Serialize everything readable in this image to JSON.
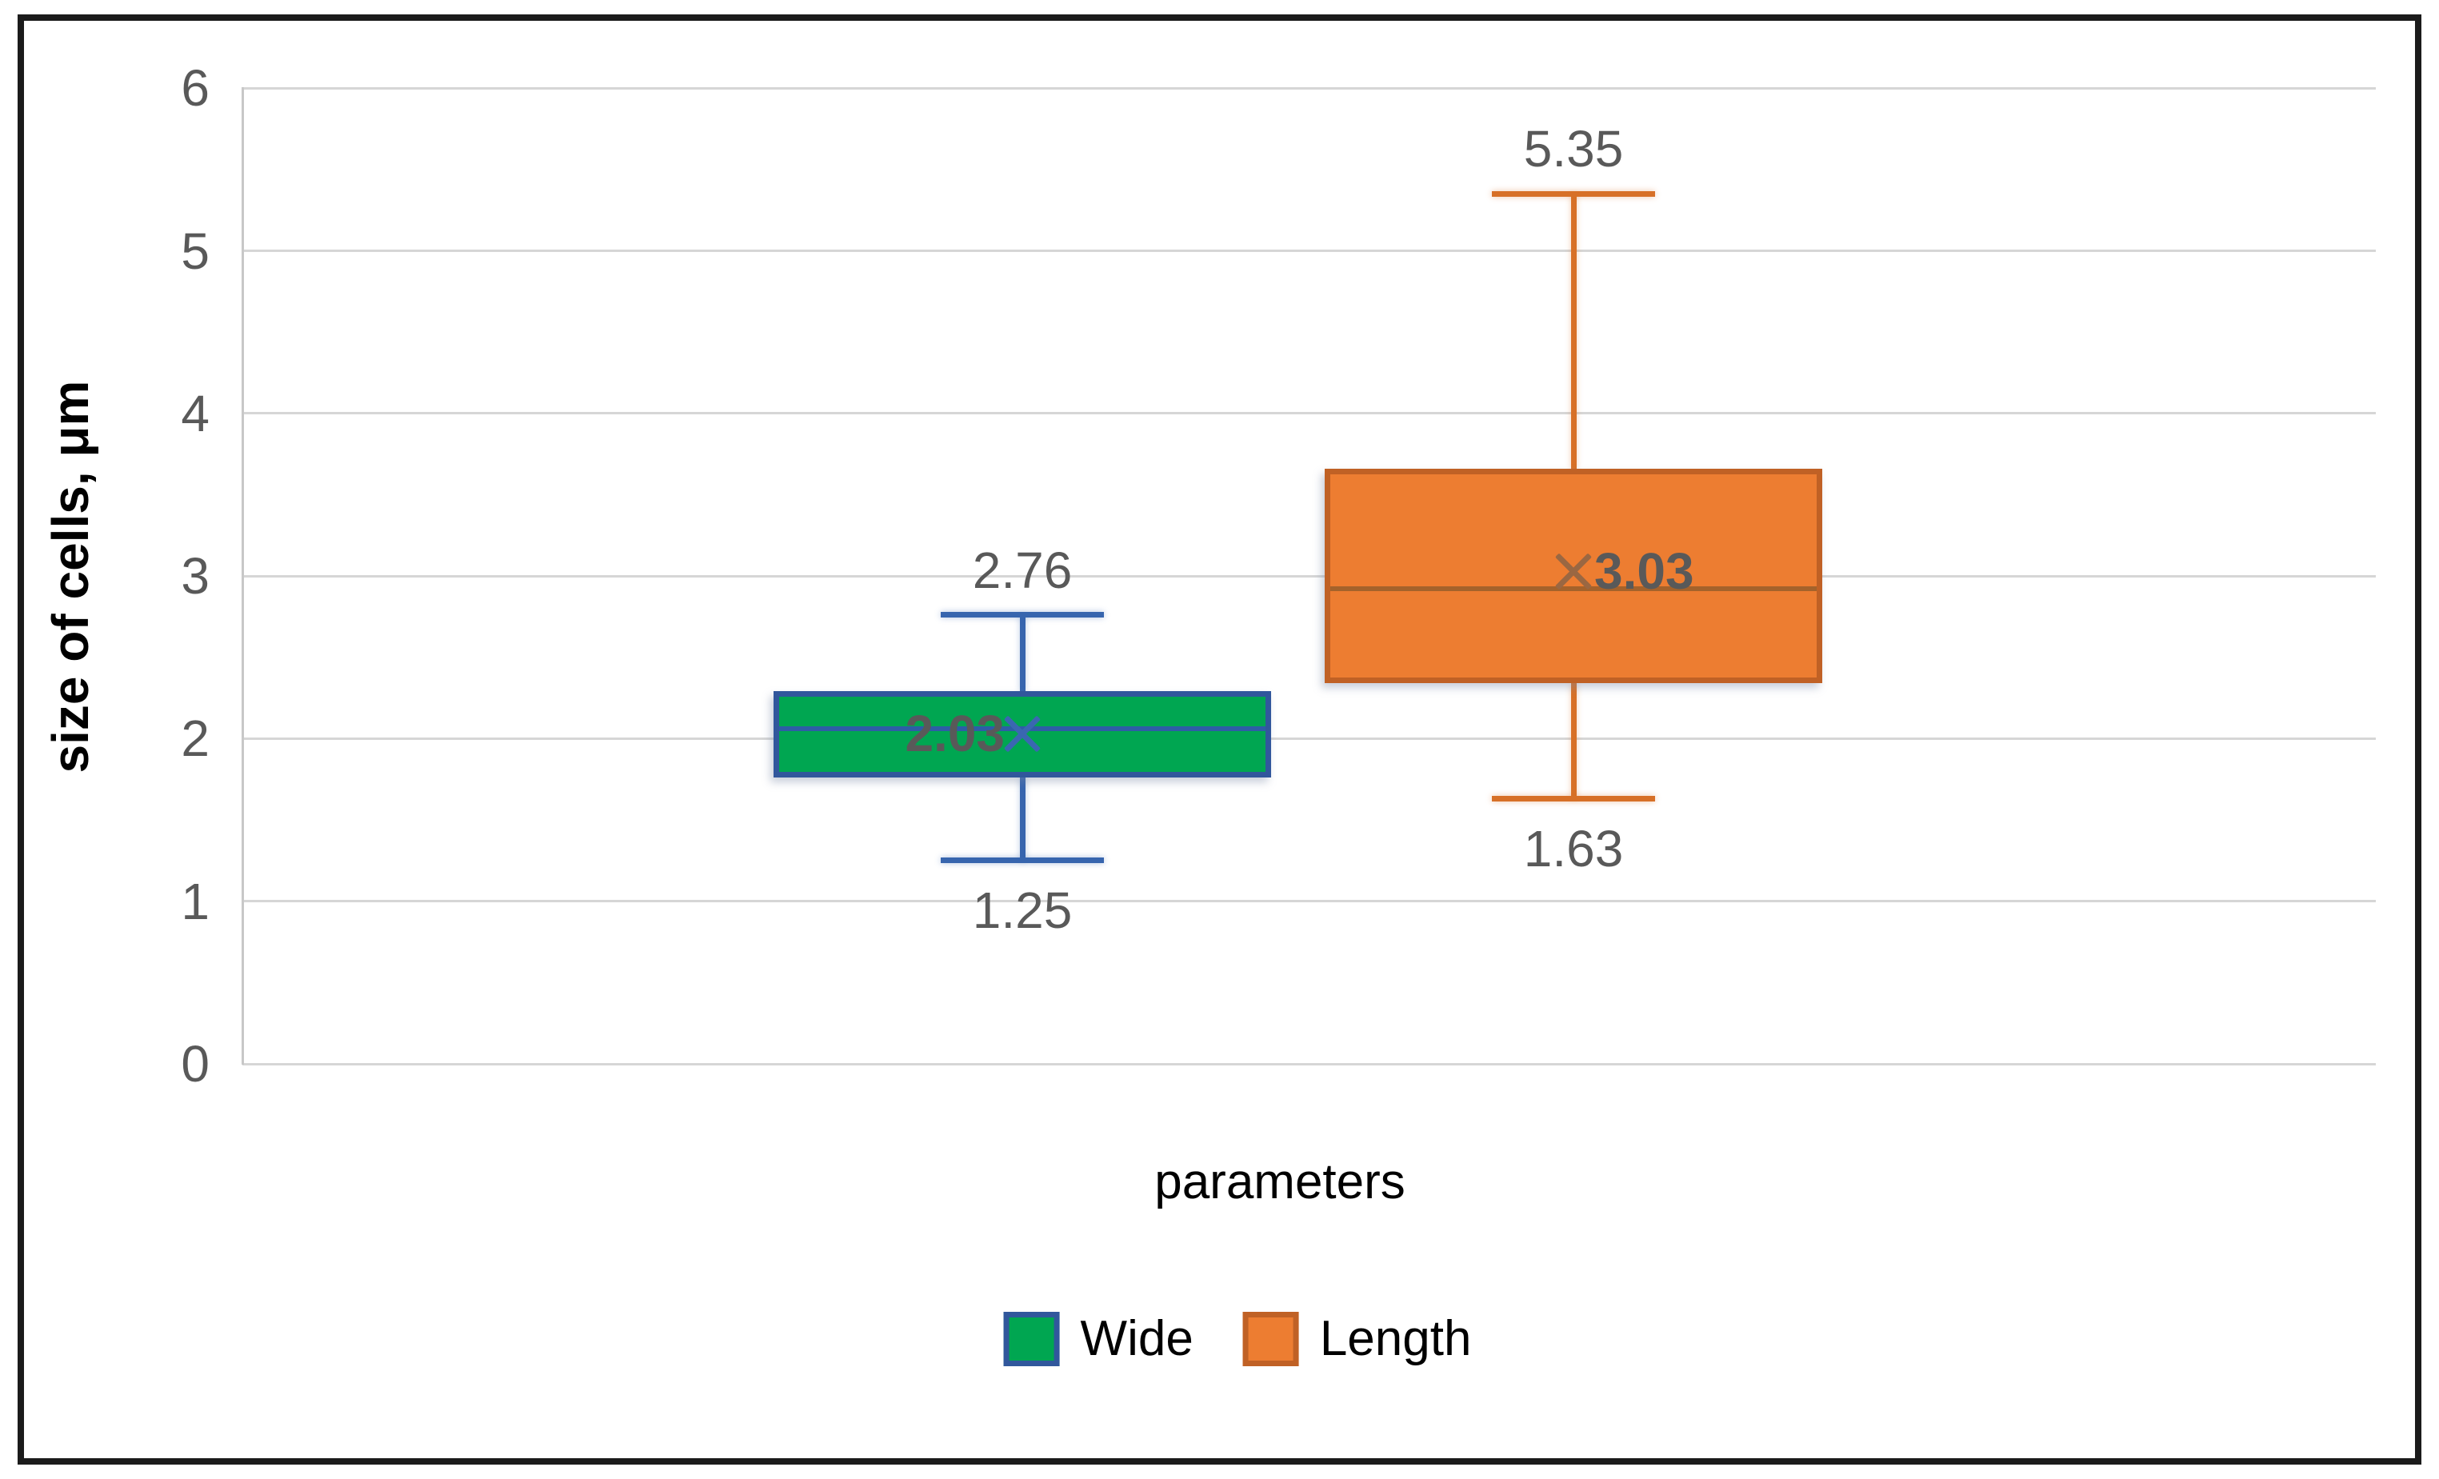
{
  "figure": {
    "y_axis_title": "size of cells, μm",
    "x_axis_title": "parameters"
  },
  "y_axis": {
    "ticks": [
      "0",
      "1",
      "2",
      "3",
      "4",
      "5",
      "6"
    ],
    "min": 0,
    "max": 6
  },
  "legend": {
    "items": [
      {
        "label": "Wide",
        "fill": "#00A651",
        "border": "#31579C"
      },
      {
        "label": "Length",
        "fill": "#ED7D31",
        "border": "#C06125"
      }
    ]
  },
  "colors": {
    "gridline": "#D6D6D6",
    "axis_line": "#C8C8C8",
    "tick_text": "#595959",
    "data_label_text": "#595959",
    "frame_border": "#1B1B1B"
  },
  "chart_data": {
    "type": "boxplot",
    "title": "",
    "categories": [
      "parameters"
    ],
    "xlabel": "parameters",
    "ylabel": "size of cells, μm",
    "ylim": [
      0,
      6
    ],
    "grid": true,
    "legend_position": "bottom",
    "series": [
      {
        "name": "Wide",
        "min": 1.25,
        "q1": 1.76,
        "median": 2.06,
        "q3": 2.29,
        "max": 2.76,
        "mean": 2.03,
        "labels": {
          "max": "2.76",
          "min": "1.25",
          "mean": "2.03"
        },
        "mean_label_side": "left",
        "fill": "#00A651",
        "border": "#31579C",
        "whisker": "#3765AE",
        "median_color": "#2E5DA6",
        "mean_marker_color": "#3A67B1"
      },
      {
        "name": "Length",
        "min": 1.63,
        "q1": 2.34,
        "median": 2.92,
        "q3": 3.66,
        "max": 5.35,
        "mean": 3.03,
        "labels": {
          "max": "5.35",
          "min": "1.63",
          "mean": "3.03"
        },
        "mean_label_side": "right",
        "fill": "#ED7D31",
        "border": "#C06125",
        "whisker": "#D77027",
        "median_color": "#A4622B",
        "mean_marker_color": "#9A6742"
      }
    ]
  }
}
